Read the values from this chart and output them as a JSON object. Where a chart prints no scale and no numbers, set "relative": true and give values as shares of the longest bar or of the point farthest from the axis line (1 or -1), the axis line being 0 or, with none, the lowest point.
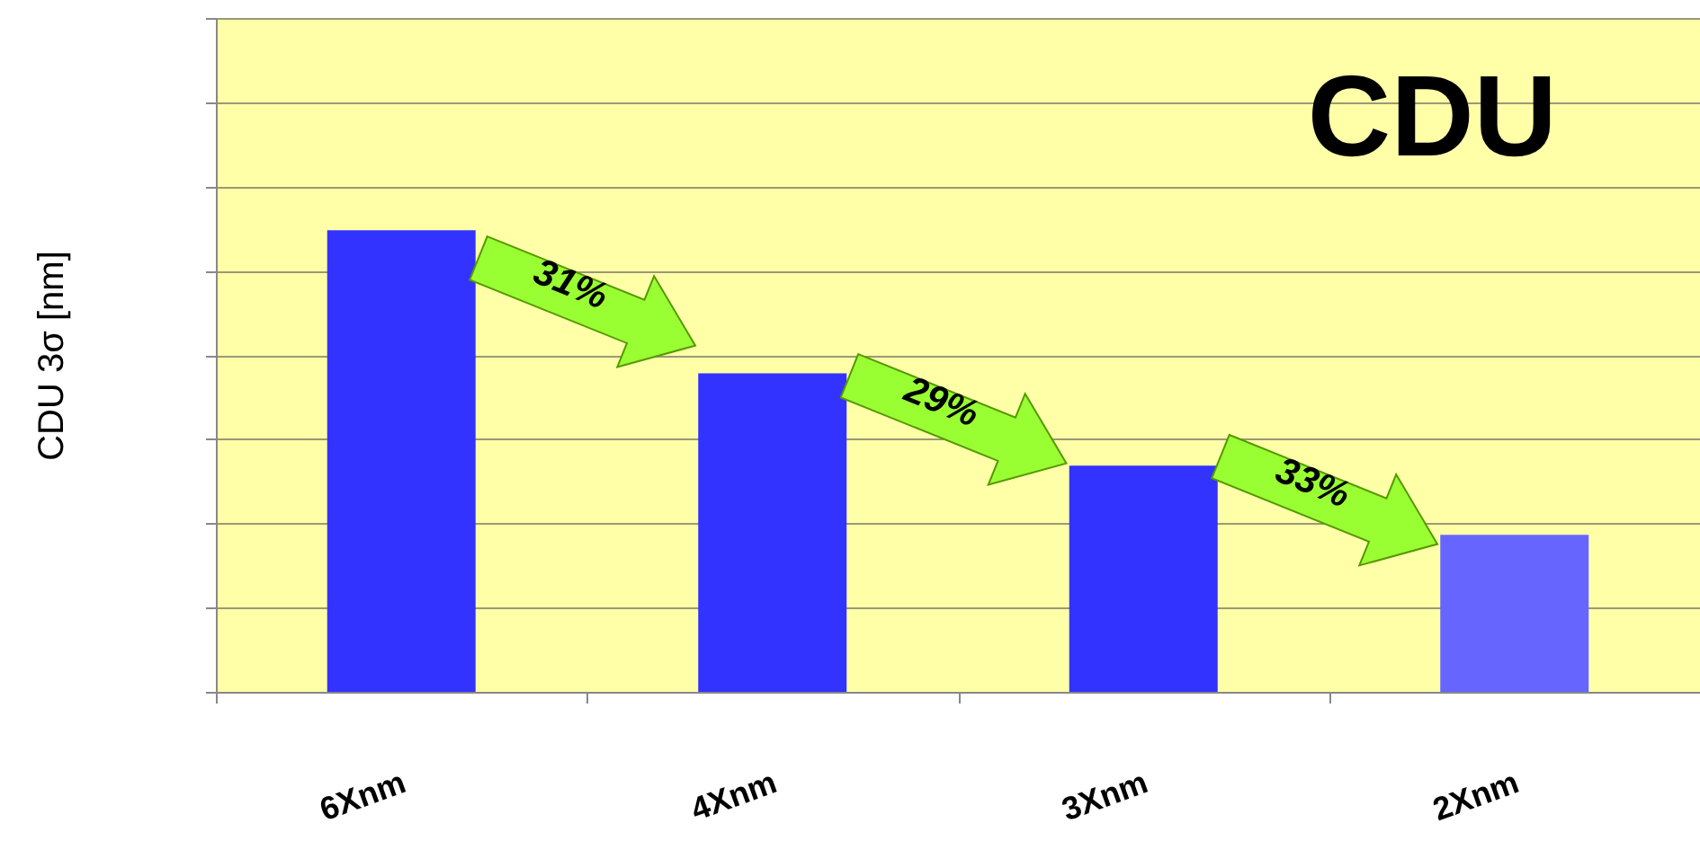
{
  "chart_data": {
    "type": "bar",
    "title": "CDU",
    "ylabel": "CDU 3σ [nm]",
    "categories": [
      "6Xnm",
      "4Xnm",
      "3Xnm",
      "2Xnm"
    ],
    "values": [
      1,
      0.69,
      0.49,
      0.34
    ],
    "colors": [
      "#3333ff",
      "#3333ff",
      "#3333ff",
      "#6666ff"
    ],
    "relative": true,
    "grid": "y",
    "annotations": [
      "31%",
      "29%",
      "33%"
    ]
  }
}
